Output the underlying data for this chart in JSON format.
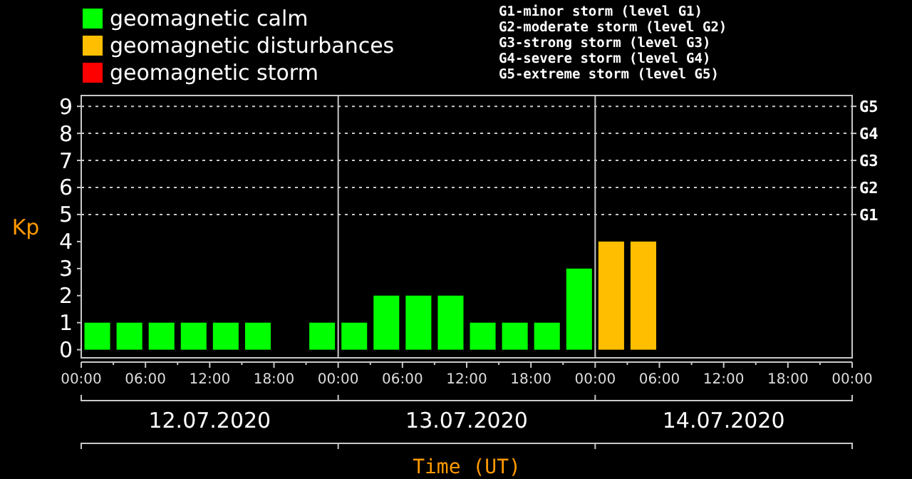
{
  "chart_data": {
    "type": "bar",
    "ylabel": "Kp",
    "xlabel": "Time (UT)",
    "x": [
      "2020-07-12T01:30",
      "2020-07-12T04:30",
      "2020-07-12T07:30",
      "2020-07-12T10:30",
      "2020-07-12T13:30",
      "2020-07-12T16:30",
      "2020-07-12T19:30",
      "2020-07-12T22:30",
      "2020-07-13T01:30",
      "2020-07-13T04:30",
      "2020-07-13T07:30",
      "2020-07-13T10:30",
      "2020-07-13T13:30",
      "2020-07-13T16:30",
      "2020-07-13T19:30",
      "2020-07-13T22:30",
      "2020-07-14T01:30",
      "2020-07-14T04:30"
    ],
    "series": [
      {
        "name": "geomagnetic calm",
        "color": "#00ff00",
        "values": [
          1,
          1,
          1,
          1,
          1,
          1,
          0,
          1,
          1,
          2,
          2,
          2,
          1,
          1,
          1,
          3,
          null,
          null
        ]
      },
      {
        "name": "geomagnetic disturbances",
        "color": "#ffbf00",
        "values": [
          null,
          null,
          null,
          null,
          null,
          null,
          null,
          null,
          null,
          null,
          null,
          null,
          null,
          null,
          null,
          null,
          4,
          4
        ]
      },
      {
        "name": "geomagnetic storm",
        "color": "#ff0000",
        "values": [
          null,
          null,
          null,
          null,
          null,
          null,
          null,
          null,
          null,
          null,
          null,
          null,
          null,
          null,
          null,
          null,
          null,
          null
        ]
      }
    ],
    "xlim": [
      "2020-07-12T00:00",
      "2020-07-15T00:00"
    ],
    "xticks": [
      {
        "value": "2020-07-12T00:00",
        "label": "00:00"
      },
      {
        "value": "2020-07-12T03:00",
        "label": null
      },
      {
        "value": "2020-07-12T06:00",
        "label": "06:00"
      },
      {
        "value": "2020-07-12T09:00",
        "label": null
      },
      {
        "value": "2020-07-12T12:00",
        "label": "12:00"
      },
      {
        "value": "2020-07-12T15:00",
        "label": null
      },
      {
        "value": "2020-07-12T18:00",
        "label": "18:00"
      },
      {
        "value": "2020-07-12T21:00",
        "label": null
      },
      {
        "value": "2020-07-13T00:00",
        "label": "00:00"
      },
      {
        "value": "2020-07-13T03:00",
        "label": null
      },
      {
        "value": "2020-07-13T06:00",
        "label": "06:00"
      },
      {
        "value": "2020-07-13T09:00",
        "label": null
      },
      {
        "value": "2020-07-13T12:00",
        "label": "12:00"
      },
      {
        "value": "2020-07-13T15:00",
        "label": null
      },
      {
        "value": "2020-07-13T18:00",
        "label": "18:00"
      },
      {
        "value": "2020-07-13T21:00",
        "label": null
      },
      {
        "value": "2020-07-14T00:00",
        "label": "00:00"
      },
      {
        "value": "2020-07-14T03:00",
        "label": null
      },
      {
        "value": "2020-07-14T06:00",
        "label": "06:00"
      },
      {
        "value": "2020-07-14T09:00",
        "label": null
      },
      {
        "value": "2020-07-14T12:00",
        "label": "12:00"
      },
      {
        "value": "2020-07-14T15:00",
        "label": null
      },
      {
        "value": "2020-07-14T18:00",
        "label": "18:00"
      },
      {
        "value": "2020-07-14T21:00",
        "label": null
      },
      {
        "value": "2020-07-15T00:00",
        "label": "00:00"
      }
    ],
    "ylim": [
      -0.3,
      9.4
    ],
    "yticks": [
      0,
      1,
      2,
      3,
      4,
      5,
      6,
      7,
      8,
      9
    ],
    "ref_lines": [
      {
        "axis": "x",
        "value": "2020-07-13T00:00",
        "color": "#c8c8c8",
        "line_style": "solid"
      },
      {
        "axis": "x",
        "value": "2020-07-14T00:00",
        "color": "#c8c8c8",
        "line_style": "solid"
      },
      {
        "axis": "y",
        "value": 5,
        "label": "G1",
        "color": "#c8c8c8",
        "line_style": "dotted"
      },
      {
        "axis": "y",
        "value": 6,
        "label": "G2",
        "color": "#c8c8c8",
        "line_style": "dotted"
      },
      {
        "axis": "y",
        "value": 7,
        "label": "G3",
        "color": "#c8c8c8",
        "line_style": "dotted"
      },
      {
        "axis": "y",
        "value": 8,
        "label": "G4",
        "color": "#c8c8c8",
        "line_style": "dotted"
      },
      {
        "axis": "y",
        "value": 9,
        "label": "G5",
        "color": "#c8c8c8",
        "line_style": "dotted"
      }
    ],
    "annotations": [
      "12.07.2020",
      "13.07.2020",
      "14.07.2020",
      "G1-minor storm (level G1)",
      "G2-moderate storm (level G2)",
      "G3-strong storm (level G3)",
      "G4-severe storm (level G4)",
      "G5-extreme storm (level G5)"
    ],
    "legend": "top left"
  }
}
